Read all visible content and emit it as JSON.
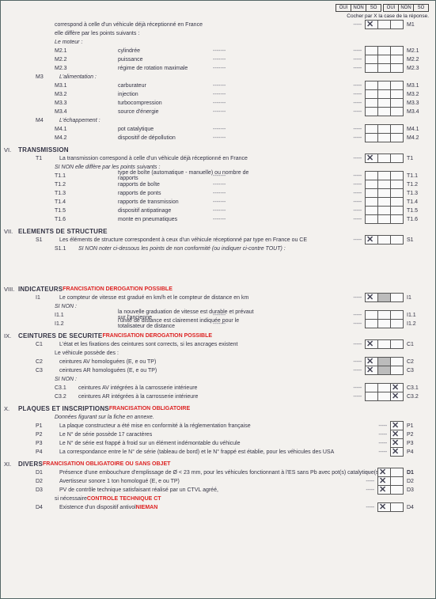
{
  "header": {
    "triple": [
      "OUI",
      "NON",
      "SO"
    ],
    "caption": "Cocher par X la case de la réponse."
  },
  "sections": [
    {
      "roman": "",
      "rows": [
        {
          "lvl": 2,
          "code": "",
          "txt": "correspond à celle d'un véhicule déjà réceptionné en France",
          "right": {
            "boxes": 3,
            "mark": 0,
            "code": "M1"
          }
        },
        {
          "lvl": 2,
          "code": "",
          "txt": "elle diffère par les points suivants :"
        },
        {
          "lvl": 2,
          "code": "",
          "txt": "Le moteur :",
          "ital": true
        },
        {
          "lvl": 2,
          "code": "M2.1",
          "txt": "",
          "mid": "cylindrée",
          "right": {
            "boxes": 3,
            "code": "M2.1"
          }
        },
        {
          "lvl": 2,
          "code": "M2.2",
          "txt": "",
          "mid": "puissance",
          "right": {
            "boxes": 3,
            "code": "M2.2"
          }
        },
        {
          "lvl": 2,
          "code": "M2.3",
          "txt": "",
          "mid": "régime de rotation maximale",
          "right": {
            "boxes": 3,
            "code": "M2.3"
          }
        },
        {
          "lvl": 1,
          "code": "M3",
          "txt": "L'alimentation :",
          "ital": true
        },
        {
          "lvl": 2,
          "code": "M3.1",
          "txt": "",
          "mid": "carburateur",
          "right": {
            "boxes": 3,
            "code": "M3.1"
          }
        },
        {
          "lvl": 2,
          "code": "M3.2",
          "txt": "",
          "mid": "injection",
          "right": {
            "boxes": 3,
            "code": "M3.2"
          }
        },
        {
          "lvl": 2,
          "code": "M3.3",
          "txt": "",
          "mid": "turbocompression",
          "right": {
            "boxes": 3,
            "code": "M3.3"
          }
        },
        {
          "lvl": 2,
          "code": "M3.4",
          "txt": "",
          "mid": "source d'énergie",
          "right": {
            "boxes": 3,
            "code": "M3.4"
          }
        },
        {
          "lvl": 1,
          "code": "M4",
          "txt": "L'échappement :",
          "ital": true
        },
        {
          "lvl": 2,
          "code": "M4.1",
          "txt": "",
          "mid": "pot catalytique",
          "right": {
            "boxes": 3,
            "code": "M4.1"
          }
        },
        {
          "lvl": 2,
          "code": "M4.2",
          "txt": "",
          "mid": "dispositif de dépollution",
          "right": {
            "boxes": 3,
            "code": "M4.2"
          }
        }
      ]
    },
    {
      "roman": "VI.",
      "heading": "TRANSMISSION",
      "rows": [
        {
          "lvl": 1,
          "code": "T1",
          "txt": "La transmission correspond à celle d'un véhicule déjà réceptionné en France",
          "right": {
            "boxes": 3,
            "mark": 0,
            "code": "T1"
          }
        },
        {
          "lvl": 2,
          "code": "",
          "txt": "SI NON   elle diffère par les points suivants :",
          "ital": true
        },
        {
          "lvl": 2,
          "code": "T1.1",
          "txt": "",
          "mid": "type de boîte (automatique - manuelle) ou nombre de rapports",
          "right": {
            "boxes": 3,
            "code": "T1.1"
          }
        },
        {
          "lvl": 2,
          "code": "T1.2",
          "txt": "",
          "mid": "rapports de boîte",
          "right": {
            "boxes": 3,
            "code": "T1.2"
          }
        },
        {
          "lvl": 2,
          "code": "T1.3",
          "txt": "",
          "mid": "rapports de ponts",
          "right": {
            "boxes": 3,
            "code": "T1.3"
          }
        },
        {
          "lvl": 2,
          "code": "T1.4",
          "txt": "",
          "mid": "rapports de transmission",
          "right": {
            "boxes": 3,
            "code": "T1.4"
          }
        },
        {
          "lvl": 2,
          "code": "T1.5",
          "txt": "",
          "mid": "dispositif antipatinage",
          "right": {
            "boxes": 3,
            "code": "T1.5"
          }
        },
        {
          "lvl": 2,
          "code": "T1.6",
          "txt": "",
          "mid": "monte en pneumatiques",
          "right": {
            "boxes": 3,
            "code": "T1.6"
          }
        }
      ]
    },
    {
      "roman": "VII.",
      "heading": "ELEMENTS DE STRUCTURE",
      "rows": [
        {
          "lvl": 1,
          "code": "S1",
          "txt": "Les éléments de structure correspondent à ceux d'un véhicule réceptionné par type en France ou CE",
          "right": {
            "boxes": 3,
            "mark": 0,
            "code": "S1"
          }
        },
        {
          "lvl": 2,
          "code": "S1.1",
          "txt": "SI NON         noter ci-dessous les points de non conformité (ou indiquer ci-contre TOUT) :",
          "ital": true
        }
      ]
    },
    {
      "roman": "VIII.",
      "heading": "INDICATEURS",
      "headingRed": "FRANCISATION DEROGATION POSSIBLE",
      "rows": [
        {
          "lvl": 1,
          "code": "I1",
          "txt": "Le compteur de vitesse est gradué en km/h et le compteur de distance en km",
          "right": {
            "boxes": 3,
            "shade": [
              1
            ],
            "mark": 0,
            "code": "I1"
          }
        },
        {
          "lvl": 2,
          "code": "",
          "txt": "SI NON :",
          "ital": true
        },
        {
          "lvl": 2,
          "code": "I1.1",
          "txt": "",
          "mid": "la nouvelle graduation de vitesse est durable et prévaut sur l'ancienne",
          "right": {
            "boxes": 3,
            "code": "I1.1"
          }
        },
        {
          "lvl": 2,
          "code": "I1.2",
          "txt": "",
          "mid": "l'unité de distance est clairement indiquée pour le totalisateur de distance",
          "right": {
            "boxes": 3,
            "code": "I1.2"
          }
        }
      ]
    },
    {
      "roman": "IX.",
      "heading": "CEINTURES DE SECURITE",
      "headingRed": "FRANCISATION DEROGATION POSSIBLE",
      "rows": [
        {
          "lvl": 1,
          "code": "C1",
          "txt": "L'état et les fixations des ceintures sont corrects, si les ancrages existent",
          "right": {
            "boxes": 3,
            "mark": 0,
            "code": "C1"
          }
        },
        {
          "lvl": 2,
          "code": "",
          "txt": "Le véhicule possède des :"
        },
        {
          "lvl": 1,
          "code": "C2",
          "txt": "ceintures AV homologuées (E, e ou TP)",
          "right": {
            "boxes": 3,
            "shade": [
              1
            ],
            "mark": 0,
            "code": "C2"
          }
        },
        {
          "lvl": 1,
          "code": "C3",
          "txt": "ceintures AR homologuées (E, e ou TP)",
          "right": {
            "boxes": 3,
            "shade": [
              1
            ],
            "mark": 0,
            "code": "C3"
          }
        },
        {
          "lvl": 2,
          "code": "",
          "txt": "SI NON :",
          "ital": true
        },
        {
          "lvl": 2,
          "code": "C3.1",
          "txt": "ceintures AV intégrées à la carrosserie intérieure",
          "right": {
            "boxes": 3,
            "mark": 2,
            "code": "C3.1"
          }
        },
        {
          "lvl": 2,
          "code": "C3.2",
          "txt": "ceintures AR intégrées à la carrosserie intérieure",
          "right": {
            "boxes": 3,
            "mark": 2,
            "code": "C3.2"
          }
        }
      ]
    },
    {
      "roman": "X.",
      "heading": "PLAQUES ET INSCRIPTIONS",
      "headingRed": "FRANCISATION OBLIGATOIRE",
      "rows": [
        {
          "lvl": 2,
          "code": "",
          "txt": "Données figurant sur la fiche en annexe.",
          "ital": true
        },
        {
          "lvl": 1,
          "code": "P1",
          "txt": "La plaque constructeur a été mise en conformité à la réglementation française",
          "right": {
            "boxes": 1,
            "mark": 0,
            "code": "P1"
          }
        },
        {
          "lvl": 1,
          "code": "P2",
          "txt": "Le N° de série possède 17 caractères",
          "right": {
            "boxes": 1,
            "mark": 0,
            "code": "P2"
          }
        },
        {
          "lvl": 1,
          "code": "P3",
          "txt": "Le N° de série est frappé à froid sur un élément indémontable du véhicule",
          "right": {
            "boxes": 1,
            "mark": 0,
            "code": "P3"
          }
        },
        {
          "lvl": 1,
          "code": "P4",
          "txt": "La correspondance entre le N° de série (tableau de bord) et le N° frappé est établie, pour les véhicules des USA",
          "right": {
            "boxes": 1,
            "mark": 0,
            "code": "P4"
          }
        }
      ]
    },
    {
      "roman": "XI.",
      "heading": "DIVERS",
      "headingRed": "FRANCISATION OBLIGATOIRE OU SANS OBJET",
      "rows": [
        {
          "lvl": 1,
          "code": "D1",
          "txt": "Présence d'une embouchure d'emplissage de Ø < 23 mm, pour les véhicules fonctionnant à l'ES sans Pb avec pot(s) catalytique(s)",
          "right": {
            "boxes": 2,
            "mark": 0,
            "code": "D1",
            "redlbl": true
          }
        },
        {
          "lvl": 1,
          "code": "D2",
          "txt": "Avertisseur sonore 1 ton homologué (E, e ou TP)",
          "right": {
            "boxes": 2,
            "mark": 0,
            "code": "D2"
          }
        },
        {
          "lvl": 1,
          "code": "D3",
          "txt": "PV de contrôle technique satisfaisant réalisé par un CTVL agréé,",
          "right": {
            "boxes": 2,
            "mark": 0,
            "code": "D3"
          }
        },
        {
          "lvl": 2,
          "code": "",
          "txt": "si nécessaire",
          "red": "CONTROLE TECHNIQUE CT"
        },
        {
          "lvl": 1,
          "code": "D4",
          "txt": "Existence d'un dispositif antivol",
          "red": "NIEMAN",
          "right": {
            "boxes": 2,
            "mark": 0,
            "code": "D4"
          }
        }
      ]
    }
  ]
}
